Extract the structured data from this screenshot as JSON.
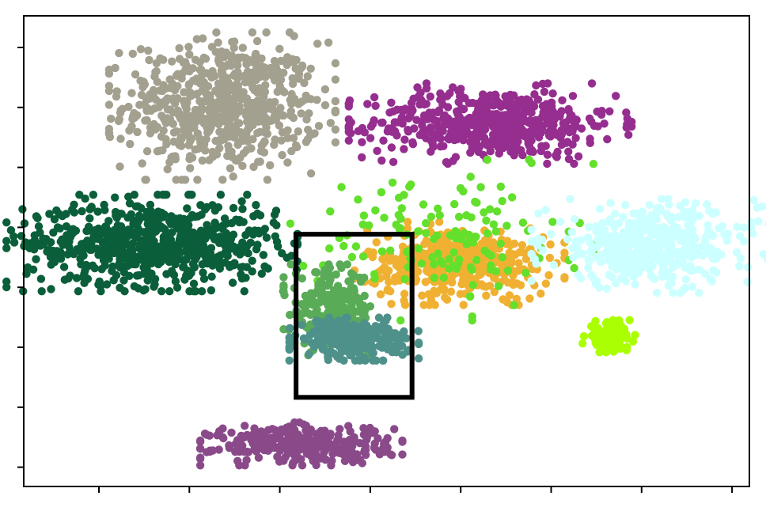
{
  "chart_data": {
    "type": "scatter",
    "title": "",
    "xlabel": "",
    "ylabel": "",
    "x_tick_count": 8,
    "y_tick_count": 8,
    "xlim": [
      -2.6,
      80
    ],
    "ylim": [
      -2.3,
      78.5
    ],
    "grid": false,
    "legend": "none",
    "series": [
      {
        "color": "#a3a08f",
        "center": [
          20,
          63
        ],
        "spread": [
          5.6,
          5.5
        ],
        "n": 650
      },
      {
        "color": "#952e8f",
        "center": [
          50.5,
          60
        ],
        "spread": [
          7.0,
          3.0
        ],
        "n": 520
      },
      {
        "color": "#0b5e3a",
        "center": [
          12,
          39.5
        ],
        "spread": [
          7.2,
          3.6
        ],
        "n": 650
      },
      {
        "color": "#f0b132",
        "center": [
          47,
          36
        ],
        "spread": [
          5.2,
          3.1
        ],
        "n": 420
      },
      {
        "color": "#62e02c",
        "center": [
          45,
          40
        ],
        "spread": [
          7.5,
          6.0
        ],
        "n": 140
      },
      {
        "color": "#ccffff",
        "center": [
          69,
          39
        ],
        "spread": [
          6.0,
          3.5
        ],
        "n": 420
      },
      {
        "color": "#aaff00",
        "center": [
          64,
          23.5
        ],
        "spread": [
          1.3,
          1.2
        ],
        "n": 90
      },
      {
        "color": "#5aab57",
        "center": [
          32.5,
          28
        ],
        "spread": [
          2.4,
          3.4
        ],
        "n": 220
      },
      {
        "color": "#4e918a",
        "center": [
          35,
          23
        ],
        "spread": [
          3.2,
          1.6
        ],
        "n": 260
      },
      {
        "color": "#8a4a8a",
        "center": [
          29,
          5
        ],
        "spread": [
          5.0,
          1.6
        ],
        "n": 330
      }
    ],
    "selection_box": {
      "x": [
        28.4,
        41.6
      ],
      "y": [
        13.0,
        41.0
      ],
      "color": "#000000"
    }
  }
}
